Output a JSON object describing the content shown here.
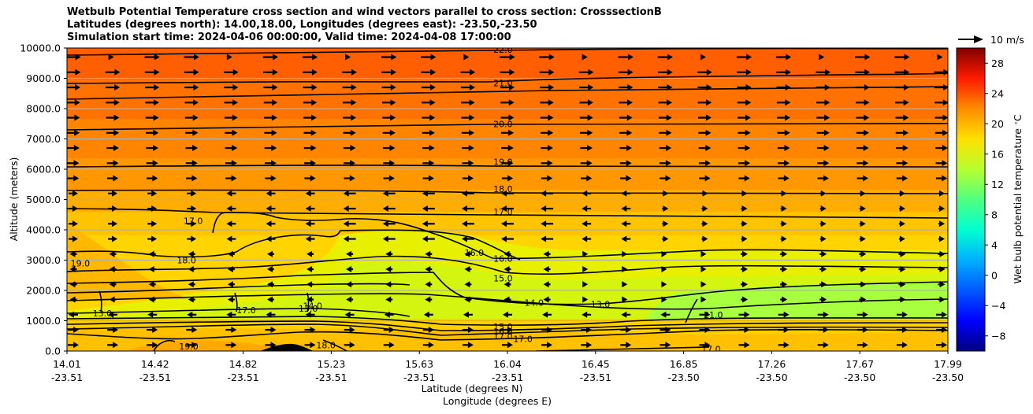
{
  "title_lines": [
    "Wetbulb Potential Temperature cross section and wind vectors parallel to cross section: CrosssectionB",
    "Latitudes (degrees north): 14.00,18.00, Longitudes (degrees east): -23.50,-23.50",
    "Simulation start time: 2024-04-06 00:00:00, Valid time: 2024-04-08 17:00:00"
  ],
  "chart_data": {
    "type": "contour_cross_section",
    "ylabel": "Altitude (meters)",
    "xlabel_lat": "Latitude (degrees N)",
    "xlabel_lon": "Longitude (degrees E)",
    "ylim": [
      0,
      10000
    ],
    "y_ticks": [
      "0.0",
      "1000.0",
      "2000.0",
      "3000.0",
      "4000.0",
      "5000.0",
      "6000.0",
      "7000.0",
      "8000.0",
      "9000.0",
      "10000.0"
    ],
    "x_ticks_lat": [
      "14.01",
      "14.42",
      "14.82",
      "15.23",
      "15.63",
      "16.04",
      "16.45",
      "16.85",
      "17.26",
      "17.67",
      "17.99"
    ],
    "x_ticks_lon": [
      "-23.51",
      "-23.51",
      "-23.51",
      "-23.51",
      "-23.51",
      "-23.51",
      "-23.51",
      "-23.50",
      "-23.50",
      "-23.50",
      "-23.50"
    ],
    "colorbar_label": "Wet bulb potential temperature $^\\circ$C",
    "colorbar_range": [
      -10,
      30
    ],
    "colorbar_ticks": [
      "28",
      "24",
      "20",
      "16",
      "12",
      "8",
      "4",
      "0",
      "−4",
      "−8"
    ],
    "quiver_key": "10 m/s",
    "contour_labels": [
      {
        "text": "22.0",
        "lat": 15.98,
        "alt": 9950
      },
      {
        "text": "21.0",
        "lat": 15.98,
        "alt": 8850
      },
      {
        "text": "20.0",
        "lat": 15.98,
        "alt": 7500
      },
      {
        "text": "19.0",
        "lat": 15.98,
        "alt": 6250
      },
      {
        "text": "18.0",
        "lat": 15.98,
        "alt": 5350
      },
      {
        "text": "17.0",
        "lat": 15.98,
        "alt": 4600
      },
      {
        "text": "16.0",
        "lat": 15.98,
        "alt": 3050
      },
      {
        "text": "16.0",
        "lat": 15.85,
        "alt": 3250
      },
      {
        "text": "15.0",
        "lat": 15.98,
        "alt": 2400
      },
      {
        "text": "14.0",
        "lat": 16.12,
        "alt": 1600
      },
      {
        "text": "13.0",
        "lat": 16.42,
        "alt": 1550
      },
      {
        "text": "15.0",
        "lat": 15.98,
        "alt": 800
      },
      {
        "text": "16.0",
        "lat": 15.98,
        "alt": 650
      },
      {
        "text": "17.0",
        "lat": 15.98,
        "alt": 500
      },
      {
        "text": "17.0",
        "lat": 16.07,
        "alt": 400
      },
      {
        "text": "17.0",
        "lat": 16.92,
        "alt": 60
      },
      {
        "text": "17.0",
        "lat": 14.58,
        "alt": 4300
      },
      {
        "text": "19.0",
        "lat": 14.07,
        "alt": 2900
      },
      {
        "text": "18.0",
        "lat": 14.55,
        "alt": 3000
      },
      {
        "text": "13.0",
        "lat": 14.17,
        "alt": 1250
      },
      {
        "text": "13.0",
        "lat": 15.1,
        "alt": 1400
      },
      {
        "text": "14.0",
        "lat": 15.12,
        "alt": 1500
      },
      {
        "text": "17.0",
        "lat": 14.82,
        "alt": 1350
      },
      {
        "text": "18.0",
        "lat": 15.18,
        "alt": 200
      },
      {
        "text": "19.0",
        "lat": 14.56,
        "alt": 150
      },
      {
        "text": "21.0",
        "lat": 16.93,
        "alt": 1200
      }
    ]
  },
  "colors": {
    "contour": "#000000",
    "grid": "#b0b0b0"
  }
}
